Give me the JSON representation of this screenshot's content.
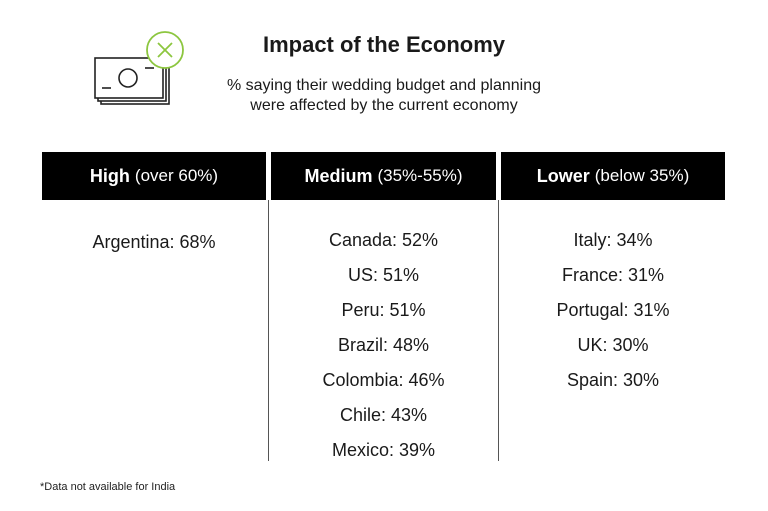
{
  "header": {
    "title": "Impact of the Economy",
    "subtitle_line1": "% saying their wedding budget and planning",
    "subtitle_line2": "were affected by the current economy",
    "icon": "money-with-x-icon"
  },
  "columns": [
    {
      "label": "High",
      "range": "(over 60%)",
      "items": [
        "Argentina: 68%"
      ]
    },
    {
      "label": "Medium",
      "range": "(35%-55%)",
      "items": [
        "Canada: 52%",
        "US: 51%",
        "Peru: 51%",
        "Brazil: 48%",
        "Colombia: 46%",
        "Chile: 43%",
        "Mexico: 39%"
      ]
    },
    {
      "label": "Lower",
      "range": "(below 35%)",
      "items": [
        "Italy: 34%",
        "France: 31%",
        "Portugal: 31%",
        "UK: 30%",
        "Spain: 30%"
      ]
    }
  ],
  "footnote": "*Data not available for India",
  "colors": {
    "header_bg": "#000000",
    "header_text": "#ffffff",
    "icon_line": "#222222",
    "icon_accent": "#8cc63f"
  }
}
